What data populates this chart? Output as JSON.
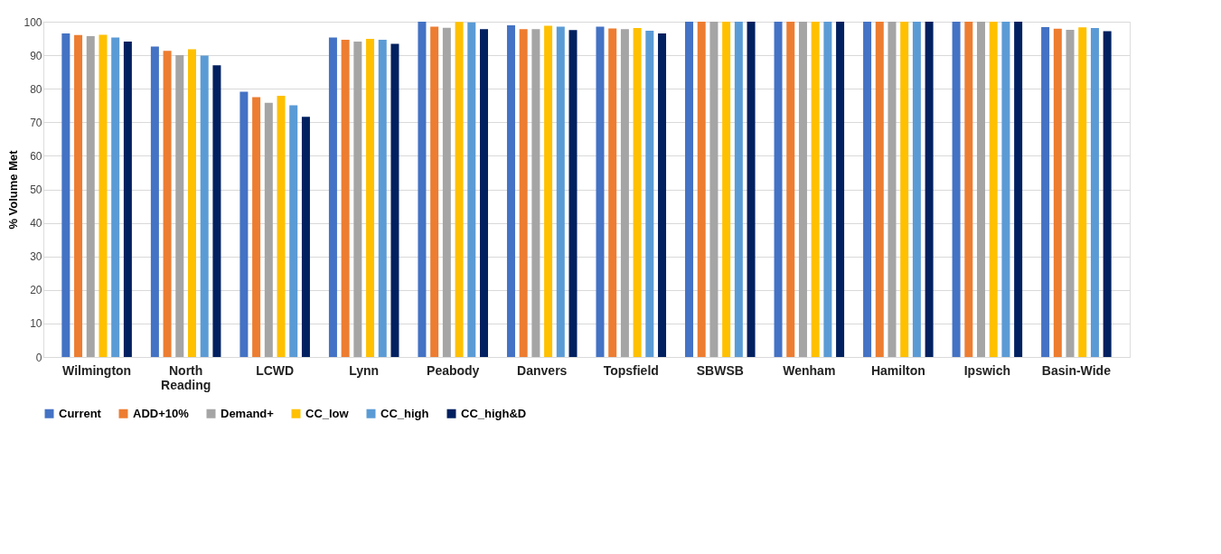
{
  "chart_data": {
    "type": "bar",
    "ylabel": "% Volume Met",
    "categories": [
      "Wilmington",
      "North Reading",
      "LCWD",
      "Lynn",
      "Peabody",
      "Danvers",
      "Topsfield",
      "SBWSB",
      "Wenham",
      "Hamilton",
      "Ipswich",
      "Basin-Wide"
    ],
    "series": [
      {
        "name": "Current",
        "color": "#4472c4",
        "values": [
          96.5,
          92.6,
          79.1,
          95.3,
          100,
          98.9,
          98.5,
          100,
          100,
          100,
          100,
          98.4
        ]
      },
      {
        "name": "ADD+10%",
        "color": "#ed7d31",
        "values": [
          96.0,
          91.3,
          77.5,
          94.6,
          98.5,
          97.8,
          98.0,
          100,
          100,
          100,
          100,
          97.9
        ]
      },
      {
        "name": "Demand+",
        "color": "#a5a5a5",
        "values": [
          95.7,
          90.0,
          75.8,
          94.1,
          98.2,
          97.8,
          97.8,
          100,
          100,
          100,
          100,
          97.6
        ]
      },
      {
        "name": "CC_low",
        "color": "#ffc000",
        "values": [
          96.1,
          91.8,
          77.9,
          94.9,
          99.9,
          98.8,
          98.1,
          100,
          100,
          100,
          100,
          98.3
        ]
      },
      {
        "name": "CC_high",
        "color": "#5b9bd5",
        "values": [
          95.3,
          89.9,
          75.1,
          94.6,
          99.8,
          98.5,
          97.3,
          100,
          100,
          100,
          100,
          98.1
        ]
      },
      {
        "name": "CC_high&D",
        "color": "#002060",
        "values": [
          94.1,
          87.0,
          71.6,
          93.4,
          97.8,
          97.5,
          96.5,
          100,
          100,
          100,
          100,
          97.2
        ]
      }
    ],
    "ylim": [
      0,
      100
    ],
    "yticks": [
      0,
      10,
      20,
      30,
      40,
      50,
      60,
      70,
      80,
      90,
      100
    ],
    "grid": "y",
    "legend": "bottom"
  }
}
